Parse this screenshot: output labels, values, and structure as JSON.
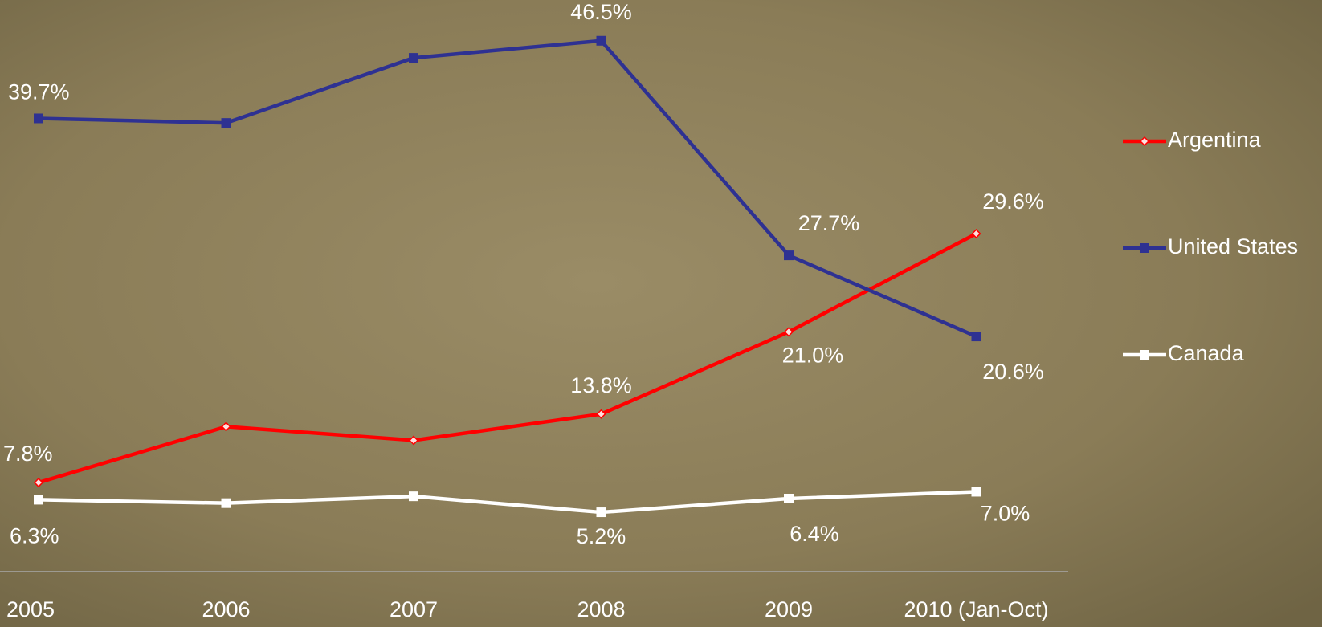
{
  "chart_data": {
    "type": "line",
    "categories": [
      "2005",
      "2006",
      "2007",
      "2008",
      "2009",
      "2010 (Jan-Oct)"
    ],
    "series": [
      {
        "name": "Argentina",
        "color": "#ff0000",
        "values": [
          7.8,
          12.7,
          11.5,
          13.8,
          21.0,
          29.6
        ],
        "value_labels": [
          "7.8%",
          null,
          null,
          "13.8%",
          "21.0%",
          "29.6%"
        ]
      },
      {
        "name": "United States",
        "color": "#2e3192",
        "values": [
          39.7,
          39.3,
          45.0,
          46.5,
          27.7,
          20.6
        ],
        "value_labels": [
          "39.7%",
          null,
          null,
          "46.5%",
          "27.7%",
          "20.6%"
        ]
      },
      {
        "name": "Canada",
        "color": "#ffffff",
        "values": [
          6.3,
          6.0,
          6.6,
          5.2,
          6.4,
          7.0
        ],
        "value_labels": [
          "6.3%",
          null,
          null,
          "5.2%",
          "6.4%",
          "7.0%"
        ]
      }
    ],
    "ylim": [
      0,
      50
    ],
    "legend": "right"
  }
}
